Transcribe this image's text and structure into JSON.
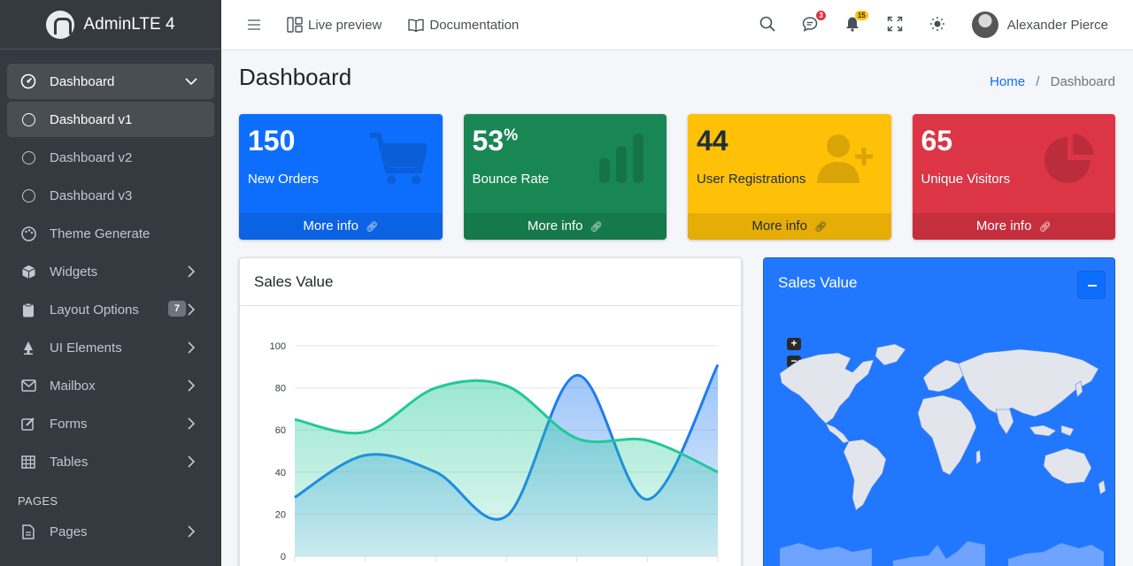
{
  "brand": {
    "name": "AdminLTE 4"
  },
  "sidebar": {
    "items": [
      {
        "label": "Dashboard",
        "icon": "speedometer-icon"
      },
      {
        "label": "Dashboard v1",
        "icon": "circle-icon"
      },
      {
        "label": "Dashboard v2",
        "icon": "circle-icon"
      },
      {
        "label": "Dashboard v3",
        "icon": "circle-icon"
      },
      {
        "label": "Theme Generate",
        "icon": "palette-icon"
      },
      {
        "label": "Widgets",
        "icon": "box-icon"
      },
      {
        "label": "Layout Options",
        "icon": "clipboard-icon",
        "badge": "7"
      },
      {
        "label": "UI Elements",
        "icon": "tree-icon"
      },
      {
        "label": "Mailbox",
        "icon": "envelope-icon"
      },
      {
        "label": "Forms",
        "icon": "pencil-square-icon"
      },
      {
        "label": "Tables",
        "icon": "table-icon"
      }
    ],
    "header_pages": "PAGES",
    "pages_item": {
      "label": "Pages",
      "icon": "file-icon"
    }
  },
  "topbar": {
    "live_preview": "Live preview",
    "documentation": "Documentation",
    "messages_badge": "3",
    "notifications_badge": "15",
    "user_name": "Alexander Pierce"
  },
  "content": {
    "title": "Dashboard",
    "breadcrumb_home": "Home",
    "breadcrumb_sep": "/",
    "breadcrumb_current": "Dashboard"
  },
  "small_boxes": [
    {
      "value": "150",
      "label": "New Orders",
      "footer": "More info",
      "color": "#0d6efd",
      "icon": "cart-icon"
    },
    {
      "value": "53",
      "suffix": "%",
      "label": "Bounce Rate",
      "footer": "More info",
      "color": "#198754",
      "icon": "bar-chart-icon"
    },
    {
      "value": "44",
      "label": "User Registrations",
      "footer": "More info",
      "color": "#ffc107",
      "icon": "person-add-icon"
    },
    {
      "value": "65",
      "label": "Unique Visitors",
      "footer": "More info",
      "color": "#dc3545",
      "icon": "pie-chart-icon"
    }
  ],
  "sales_card": {
    "title": "Sales Value"
  },
  "map_card": {
    "title": "Sales Value",
    "zoom_in": "+",
    "zoom_out": "−"
  },
  "chart_data": {
    "type": "area",
    "ylim": [
      0,
      100
    ],
    "yticks": [
      "0",
      "20",
      "40",
      "60",
      "80",
      "100"
    ],
    "series": [
      {
        "values": [
          28,
          48,
          40,
          19,
          86,
          27,
          91
        ],
        "color": "#1e7bf2"
      },
      {
        "values": [
          65,
          59,
          80,
          81,
          56,
          55,
          40
        ],
        "color": "#20c997"
      }
    ]
  }
}
